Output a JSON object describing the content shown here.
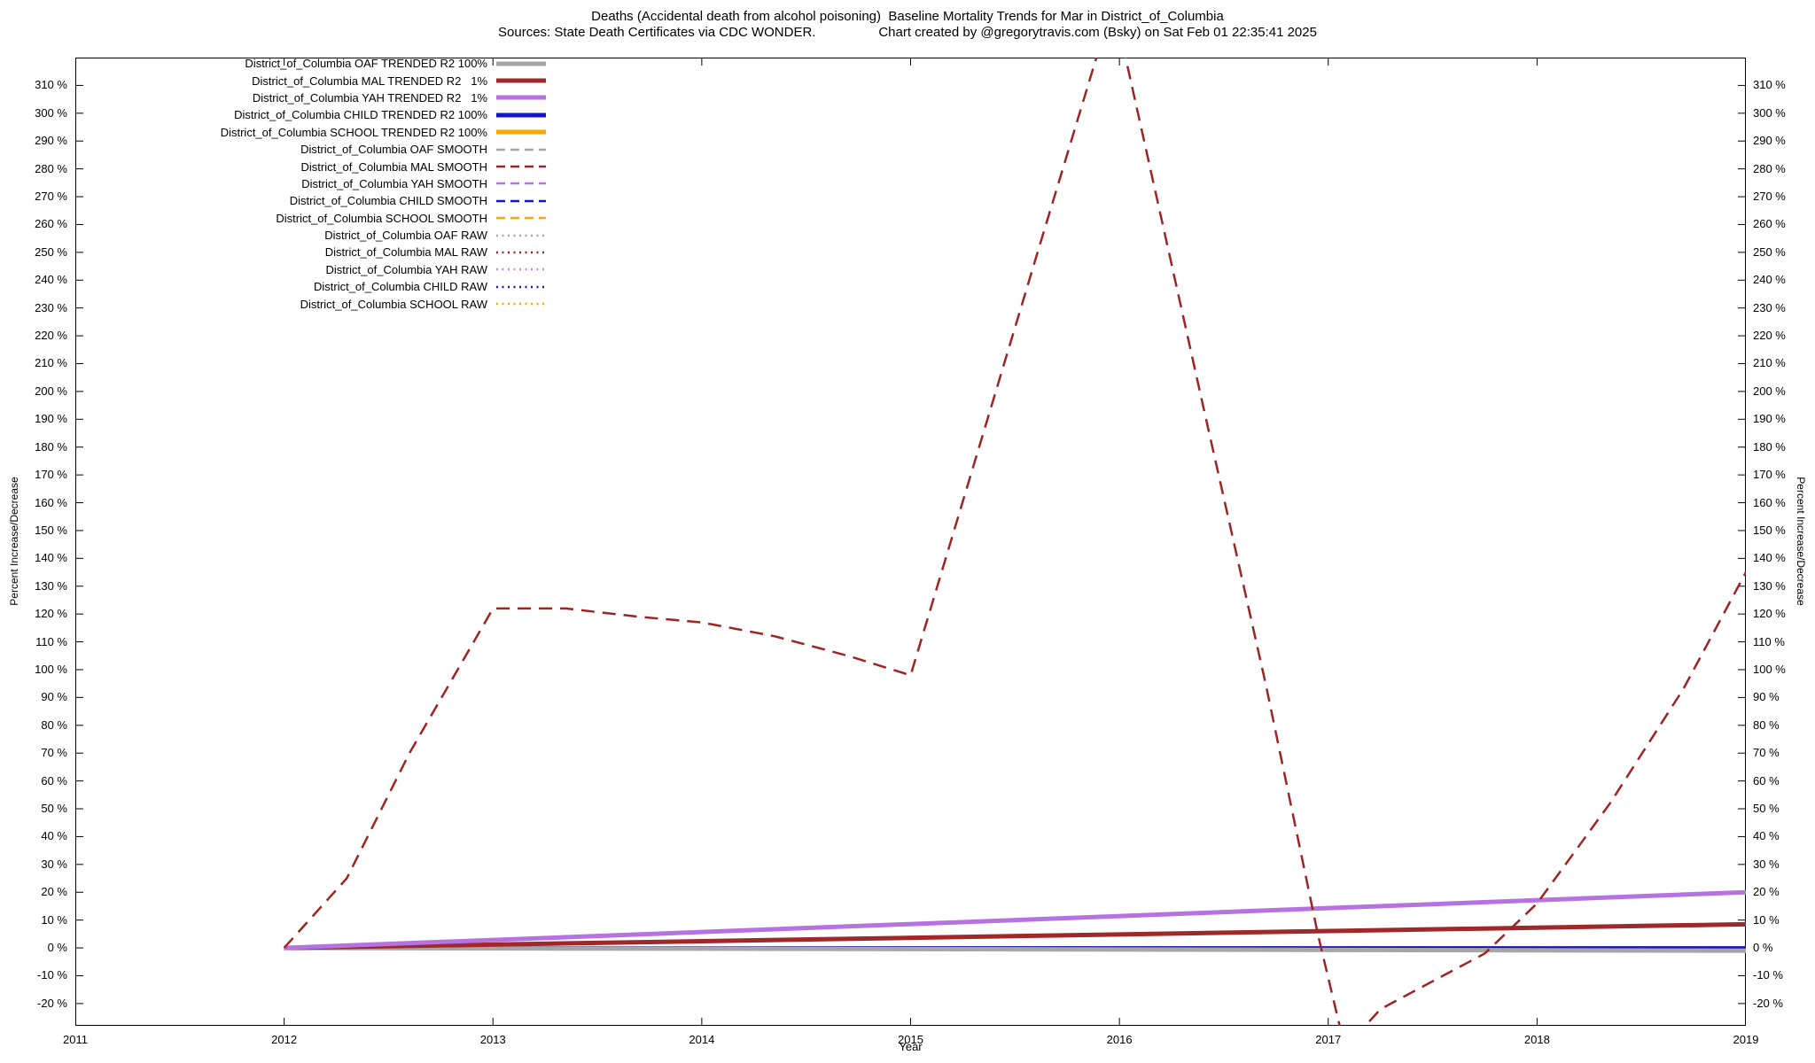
{
  "title": {
    "line1": "Deaths (Accidental death from alcohol poisoning)  Baseline Mortality Trends for Mar in District_of_Columbia",
    "line2": "Sources: State Death Certificates via CDC WONDER.                 Chart created by @gregorytravis.com (Bsky) on Sat Feb 01 22:35:41 2025"
  },
  "axes": {
    "x_label": "Year",
    "y_label_left": "Percent Increase/Decrease",
    "y_label_right": "Percent Increase/Decrease",
    "x_ticks": [
      2011,
      2012,
      2013,
      2014,
      2015,
      2016,
      2017,
      2018,
      2019
    ],
    "y_ticks": [
      -20,
      -10,
      0,
      10,
      20,
      30,
      40,
      50,
      60,
      70,
      80,
      90,
      100,
      110,
      120,
      130,
      140,
      150,
      160,
      170,
      180,
      190,
      200,
      210,
      220,
      230,
      240,
      250,
      260,
      270,
      280,
      290,
      300,
      310
    ],
    "y_tick_suffix": " %"
  },
  "legend": {
    "entries": [
      {
        "label": "District_of_Columbia OAF TRENDED R2 100%",
        "style": "solid",
        "color": "#a6a6a6",
        "width": 5
      },
      {
        "label": "District_of_Columbia MAL TRENDED R2   1%",
        "style": "solid",
        "color": "#a02828",
        "width": 5
      },
      {
        "label": "District_of_Columbia YAH TRENDED R2   1%",
        "style": "solid",
        "color": "#b572e0",
        "width": 5
      },
      {
        "label": "District_of_Columbia CHILD TRENDED R2 100%",
        "style": "solid",
        "color": "#1515cc",
        "width": 5
      },
      {
        "label": "District_of_Columbia SCHOOL TRENDED R2 100%",
        "style": "solid",
        "color": "#ffa600",
        "width": 5
      },
      {
        "label": "District_of_Columbia OAF SMOOTH",
        "style": "dashed",
        "color": "#a6a6a6",
        "width": 2.5
      },
      {
        "label": "District_of_Columbia MAL SMOOTH",
        "style": "dashed",
        "color": "#9e2424",
        "width": 2.5
      },
      {
        "label": "District_of_Columbia YAH SMOOTH",
        "style": "dashed",
        "color": "#b572e0",
        "width": 2.5
      },
      {
        "label": "District_of_Columbia CHILD SMOOTH",
        "style": "dashed",
        "color": "#1515cc",
        "width": 2.5
      },
      {
        "label": "District_of_Columbia SCHOOL SMOOTH",
        "style": "dashed",
        "color": "#ffa600",
        "width": 2.5
      },
      {
        "label": "District_of_Columbia OAF RAW",
        "style": "dotted",
        "color": "#a6a6a6",
        "width": 2.5
      },
      {
        "label": "District_of_Columbia MAL RAW",
        "style": "dotted",
        "color": "#9e2424",
        "width": 2.5
      },
      {
        "label": "District_of_Columbia YAH RAW",
        "style": "dotted",
        "color": "#c08cf0",
        "width": 2.5
      },
      {
        "label": "District_of_Columbia CHILD RAW",
        "style": "dotted",
        "color": "#1515cc",
        "width": 2.5
      },
      {
        "label": "District_of_Columbia SCHOOL RAW",
        "style": "dotted",
        "color": "#ffa600",
        "width": 2.5
      }
    ]
  },
  "chart_data": {
    "type": "line",
    "title": "Deaths (Accidental death from alcohol poisoning)  Baseline Mortality Trends for Mar in District_of_Columbia",
    "xlabel": "Year",
    "ylabel": "Percent Increase/Decrease",
    "xlim": [
      2011,
      2019
    ],
    "ylim": [
      -28,
      320
    ],
    "grid": false,
    "legend_position": "top-left-inside",
    "series": [
      {
        "name": "District_of_Columbia SCHOOL TRENDED R2 100%",
        "style": "solid",
        "color": "#ffa600",
        "width": 4,
        "x": [
          2012,
          2019
        ],
        "y": [
          0,
          0
        ]
      },
      {
        "name": "District_of_Columbia CHILD TRENDED R2 100%",
        "style": "solid",
        "color": "#1515cc",
        "width": 4,
        "x": [
          2012,
          2019
        ],
        "y": [
          0,
          0
        ]
      },
      {
        "name": "District_of_Columbia OAF TRENDED R2 100%",
        "style": "solid",
        "color": "#a6a6a6",
        "width": 5,
        "x": [
          2012,
          2019
        ],
        "y": [
          0,
          -1
        ]
      },
      {
        "name": "District_of_Columbia MAL TRENDED R2 1%",
        "style": "solid",
        "color": "#a02828",
        "width": 5,
        "x": [
          2012,
          2019
        ],
        "y": [
          0,
          8.5
        ]
      },
      {
        "name": "District_of_Columbia YAH TRENDED R2 1%",
        "style": "solid",
        "color": "#b572e0",
        "width": 5,
        "x": [
          2012,
          2019
        ],
        "y": [
          0,
          20
        ]
      },
      {
        "name": "District_of_Columbia MAL SMOOTH",
        "style": "dashed",
        "color": "#9e2424",
        "width": 2.5,
        "x": [
          2012,
          2012.3,
          2012.6,
          2013,
          2013.35,
          2013.7,
          2014,
          2014.35,
          2014.7,
          2015,
          2015.3,
          2015.6,
          2015.97,
          2016.4,
          2016.7,
          2016.95,
          2017.08,
          2017.25,
          2017.5,
          2017.75,
          2018,
          2018.35,
          2018.7,
          2019
        ],
        "y": [
          0,
          25,
          70,
          122,
          122,
          119,
          117,
          112,
          105,
          98,
          173,
          248,
          340,
          195,
          95,
          5,
          -36,
          -22,
          -12,
          -2,
          16,
          52,
          93,
          135
        ]
      }
    ]
  }
}
